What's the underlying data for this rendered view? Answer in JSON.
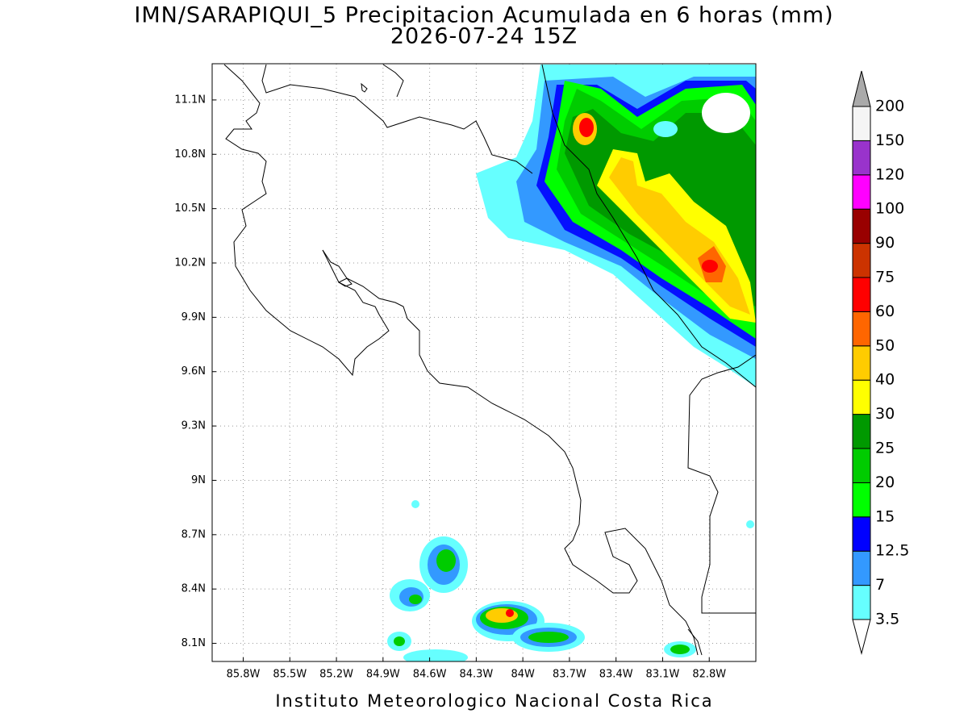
{
  "title": "IMN/SARAPIQUI_5 Precipitacion Acumulada en 6 horas (mm)",
  "subtitle": "2026-07-24 15Z",
  "map": {
    "lonlim": [
      -86.0,
      -82.5
    ],
    "latlim": [
      8.0,
      11.3
    ],
    "lon_ticks": [
      {
        "value": -85.8,
        "label": "85.8W"
      },
      {
        "value": -85.5,
        "label": "85.5W"
      },
      {
        "value": -85.2,
        "label": "85.2W"
      },
      {
        "value": -84.9,
        "label": "84.9W"
      },
      {
        "value": -84.6,
        "label": "84.6W"
      },
      {
        "value": -84.3,
        "label": "84.3W"
      },
      {
        "value": -84.0,
        "label": "84W"
      },
      {
        "value": -83.7,
        "label": "83.7W"
      },
      {
        "value": -83.4,
        "label": "83.4W"
      },
      {
        "value": -83.1,
        "label": "83.1W"
      },
      {
        "value": -82.8,
        "label": "82.8W"
      }
    ],
    "lat_ticks": [
      {
        "value": 11.1,
        "label": "11.1N"
      },
      {
        "value": 10.8,
        "label": "10.8N"
      },
      {
        "value": 10.5,
        "label": "10.5N"
      },
      {
        "value": 10.2,
        "label": "10.2N"
      },
      {
        "value": 9.9,
        "label": "9.9N"
      },
      {
        "value": 9.6,
        "label": "9.6N"
      },
      {
        "value": 9.3,
        "label": "9.3N"
      },
      {
        "value": 9.0,
        "label": "9N"
      },
      {
        "value": 8.7,
        "label": "8.7N"
      },
      {
        "value": 8.4,
        "label": "8.4N"
      },
      {
        "value": 8.1,
        "label": "8.1N"
      }
    ],
    "grid": true,
    "colorbar": {
      "levels": [
        3.5,
        7,
        12.5,
        15,
        20,
        25,
        30,
        40,
        50,
        60,
        75,
        90,
        100,
        120,
        150,
        200
      ],
      "colors": [
        "#66ffff",
        "#3399ff",
        "#0000ff",
        "#00ff00",
        "#00cc00",
        "#009900",
        "#ffff00",
        "#ffcc00",
        "#ff6600",
        "#ff0000",
        "#cc3300",
        "#990000",
        "#ff00ff",
        "#9933cc",
        "#f5f5f5"
      ],
      "over_color": "#aaaaaa"
    }
  },
  "footer": "Instituto Meteorologico Nacional Costa Rica"
}
